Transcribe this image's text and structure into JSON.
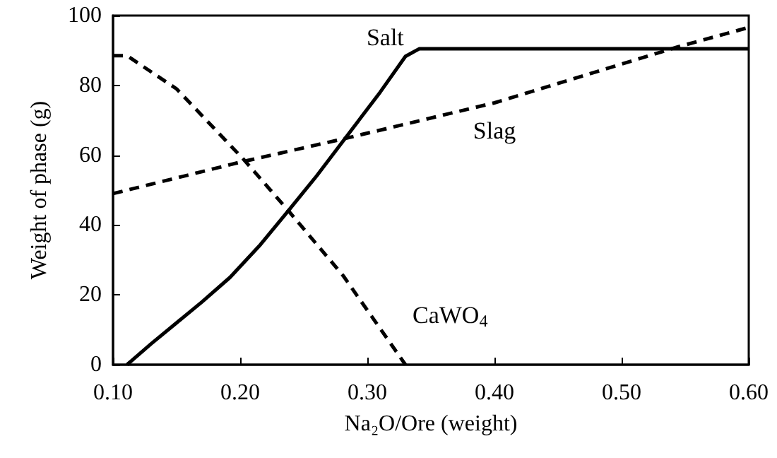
{
  "chart_data": {
    "type": "line",
    "xlabel": "Na₂O/Ore (weight)",
    "ylabel": "Weight of phase (g)",
    "xlim": [
      0.1,
      0.6
    ],
    "xticks": [
      {
        "value": 0.1,
        "label": "0.10"
      },
      {
        "value": 0.2,
        "label": "0.20"
      },
      {
        "value": 0.3,
        "label": "0.30"
      },
      {
        "value": 0.4,
        "label": "0.40"
      },
      {
        "value": 0.5,
        "label": "0.50"
      },
      {
        "value": 0.6,
        "label": "0.60"
      }
    ],
    "ylim": [
      0,
      100
    ],
    "yticks": [
      0,
      20,
      40,
      60,
      80,
      100
    ],
    "grid": false,
    "legend": false,
    "marker": "none",
    "series": [
      {
        "name": "Salt",
        "color": "#000000",
        "line_style": "solid",
        "x": [
          0.111,
          0.13,
          0.15,
          0.17,
          0.192,
          0.215,
          0.237,
          0.26,
          0.285,
          0.31,
          0.33,
          0.341,
          0.6
        ],
        "values": [
          0,
          6,
          12,
          18,
          25,
          34,
          43.7,
          54,
          66,
          78,
          88.3,
          90.5,
          90.5
        ]
      },
      {
        "name": "Slag",
        "color": "#000000",
        "line_style": "dashed",
        "x": [
          0.1,
          0.2,
          0.285,
          0.4,
          0.544,
          0.6
        ],
        "values": [
          49,
          58,
          65,
          75,
          91,
          96.6
        ]
      },
      {
        "name": "CaWO$_{4}$",
        "color": "#000000",
        "line_style": "dashed",
        "x": [
          0.1,
          0.111,
          0.15,
          0.203,
          0.237,
          0.281,
          0.33
        ],
        "values": [
          88.5,
          88.5,
          79,
          58.7,
          44.5,
          25.5,
          0
        ]
      }
    ]
  }
}
